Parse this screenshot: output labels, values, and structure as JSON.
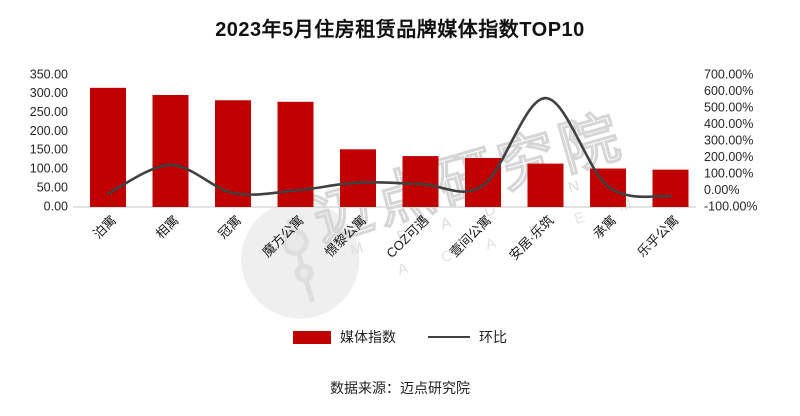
{
  "title": "2023年5月住房租赁品牌媒体指数TOP10",
  "chart_data": {
    "type": "bar",
    "subtype": "bar-line-combo",
    "categories": [
      "泊寓",
      "相寓",
      "冠寓",
      "魔方公寓",
      "憬黎公寓",
      "COZ可遇",
      "壹间公寓",
      "安居·乐筑",
      "承寓",
      "乐乎公寓"
    ],
    "series": [
      {
        "name": "媒体指数",
        "type": "bar",
        "axis": "left",
        "color": "#c00000",
        "values": [
          316,
          297,
          283,
          279,
          153,
          135,
          130,
          115,
          102,
          99
        ]
      },
      {
        "name": "环比",
        "type": "line",
        "axis": "right",
        "color": "#404040",
        "values_percent": [
          -20,
          155,
          -15,
          0,
          48,
          40,
          30,
          560,
          25,
          -35
        ]
      }
    ],
    "title": "2023年5月住房租赁品牌媒体指数TOP10",
    "xlabel": "",
    "ylabel_left": "",
    "ylabel_right": "",
    "left_axis": {
      "min": 0,
      "max": 350,
      "step": 50,
      "tick_labels": [
        "350.00",
        "300.00",
        "250.00",
        "200.00",
        "150.00",
        "100.00",
        "50.00",
        "0.00"
      ]
    },
    "right_axis": {
      "min": -100,
      "max": 700,
      "step": 100,
      "tick_labels": [
        "700.00%",
        "600.00%",
        "500.00%",
        "400.00%",
        "300.00%",
        "200.00%",
        "100.00%",
        "0.00%",
        "-100.00%"
      ]
    },
    "grid": false,
    "legend_position": "bottom",
    "category_label_rotation_deg": -45
  },
  "legend": {
    "bar_label": "媒体指数",
    "line_label": "环比"
  },
  "footer": {
    "source": "数据来源：迈点研究院"
  },
  "watermark": {
    "cn": "迈点研究院",
    "en_line1": "M E A D I N",
    "en_line2": "A C A D E M Y"
  },
  "colors": {
    "bar": "#c00000",
    "line": "#404040",
    "axis_text": "#262626",
    "baseline": "#d9d9d9",
    "title": "#111111"
  }
}
